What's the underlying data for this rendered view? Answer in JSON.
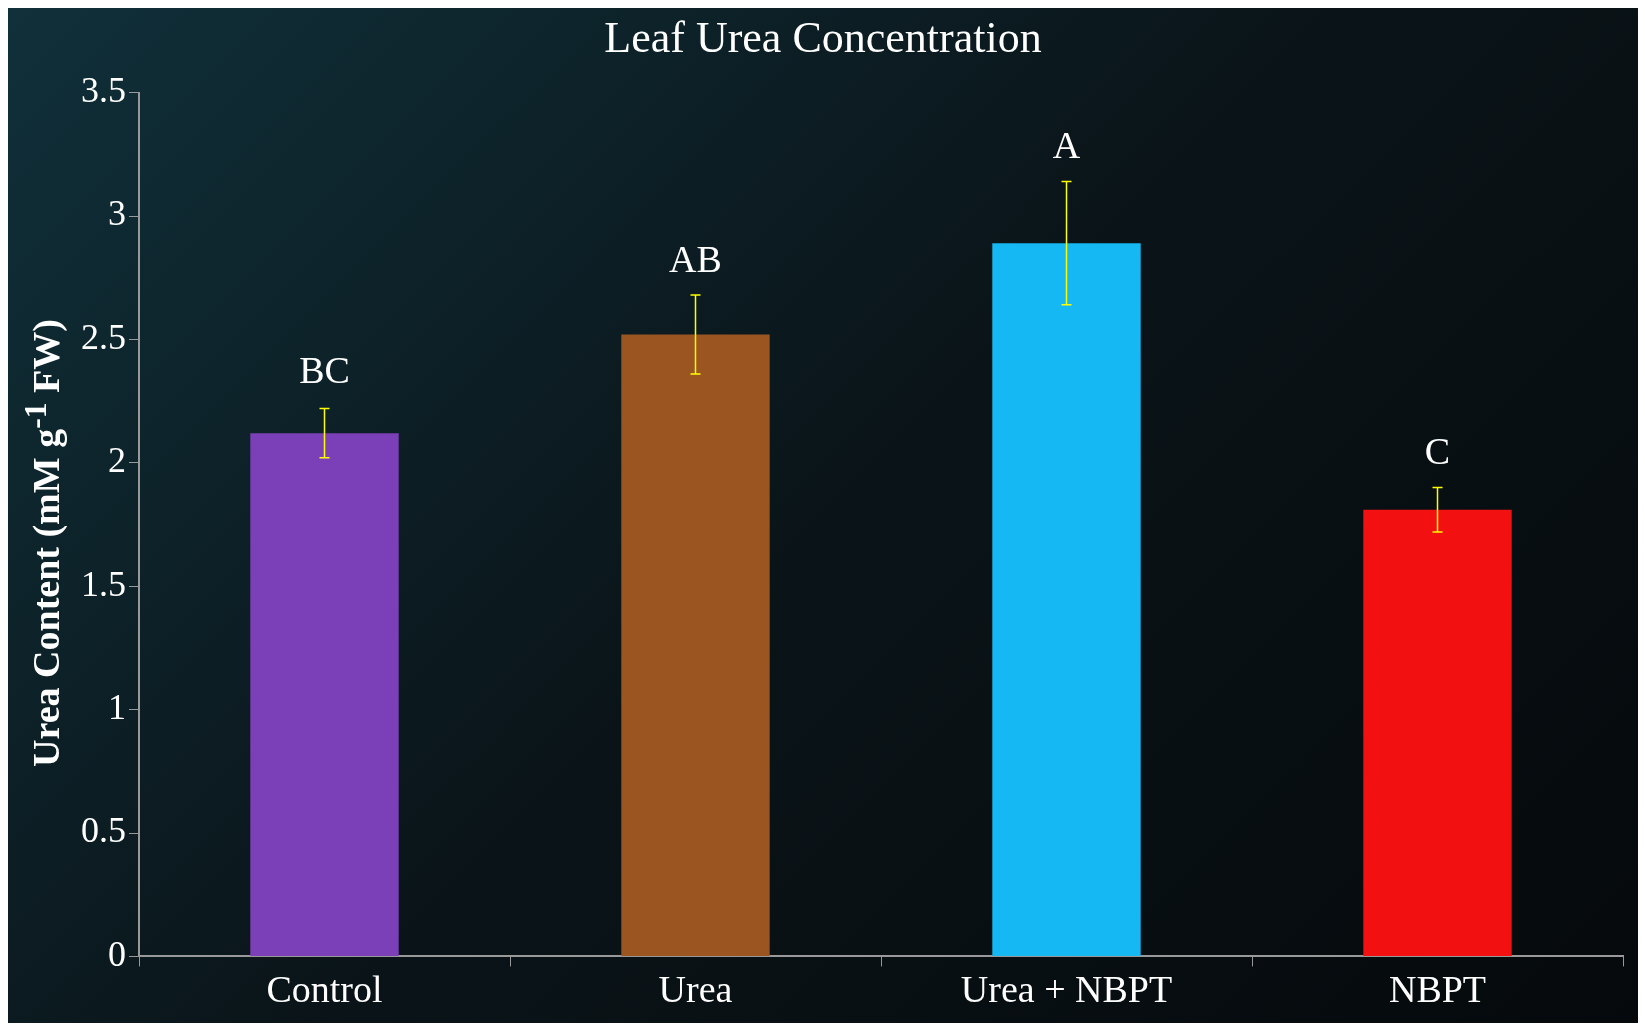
{
  "chart_data": {
    "type": "bar",
    "title": "Leaf Urea Concentration",
    "ylabel": "Urea Content (mM g$^{-1}$ FW)",
    "categories": [
      "Control",
      "Urea",
      "Urea + NBPT",
      "NBPT"
    ],
    "values": [
      2.12,
      2.52,
      2.89,
      1.81
    ],
    "colors": [
      "#7b3fb8",
      "#9a5520",
      "#15b8f2",
      "#f21010"
    ],
    "errors": [
      0.1,
      0.16,
      0.25,
      0.09
    ],
    "annotations": [
      {
        "text": "BC",
        "x": "Control",
        "y": 2.23
      },
      {
        "text": "AB",
        "x": "Urea",
        "y": 2.68
      },
      {
        "text": "A",
        "x": "Urea + NBPT",
        "y": 3.14
      },
      {
        "text": "C",
        "x": "NBPT",
        "y": 1.9
      }
    ],
    "ylim": [
      0,
      3.5
    ],
    "yticks": [
      0,
      0.5,
      1,
      1.5,
      2,
      2.5,
      3,
      3.5
    ],
    "grid": false,
    "legend": false
  }
}
